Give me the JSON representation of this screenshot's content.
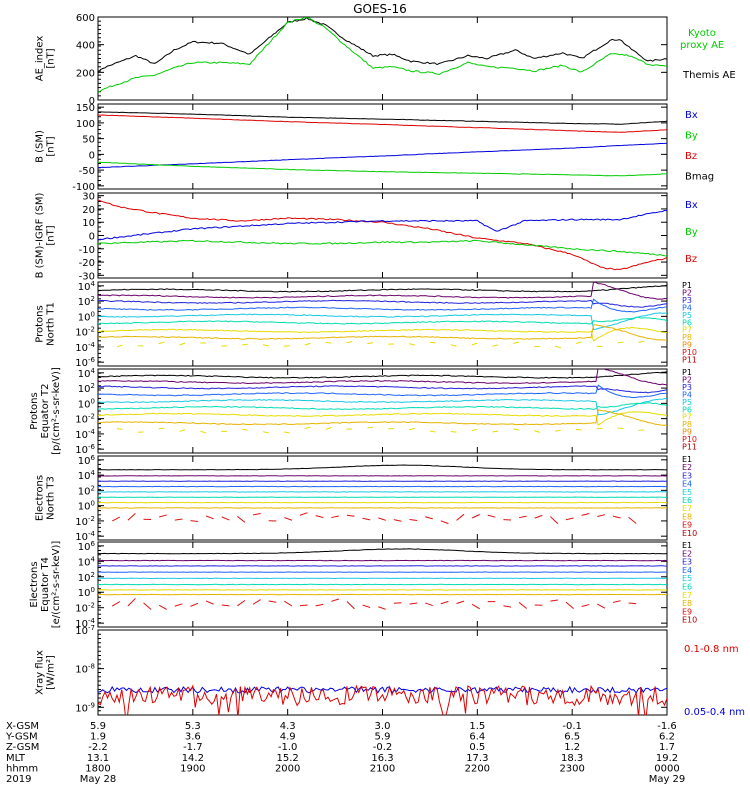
{
  "chart_data": {
    "title": "GOES-16",
    "type": "line",
    "panels": [
      {
        "id": "ae",
        "ylabel": [
          "AE_index",
          "[nT]"
        ],
        "yticks": [
          "600",
          "400",
          "200",
          "0"
        ],
        "ylim": [
          0,
          600
        ],
        "legend": [
          {
            "label": "Kyoto proxy AE",
            "color": "#00cc00",
            "lines": [
              "Kyoto",
              "proxy AE"
            ]
          },
          {
            "label": "Themis AE",
            "color": "#000000",
            "lines": [
              "Themis AE"
            ]
          }
        ],
        "series": [
          {
            "color": "#000000",
            "x_hours": [
              0,
              0.05,
              0.4,
              0.6,
              0.8,
              1,
              1.3,
              1.6,
              2,
              2.2,
              2.4,
              2.6,
              2.9,
              3.1,
              3.3,
              3.6,
              3.9,
              4.1,
              4.4,
              4.6,
              4.9,
              5.1,
              5.4,
              5.5,
              5.6,
              5.8,
              6
            ],
            "values": [
              200,
              230,
              320,
              260,
              360,
              420,
              410,
              330,
              560,
              590,
              540,
              440,
              320,
              330,
              280,
              260,
              320,
              300,
              360,
              300,
              340,
              300,
              430,
              440,
              380,
              280,
              300
            ]
          },
          {
            "color": "#00cc00",
            "x_hours": [
              0,
              0.1,
              0.4,
              0.6,
              0.8,
              1,
              1.3,
              1.6,
              2,
              2.2,
              2.4,
              2.6,
              2.9,
              3.1,
              3.3,
              3.6,
              3.9,
              4.1,
              4.4,
              4.6,
              4.9,
              5.1,
              5.4,
              5.5,
              5.6,
              5.8,
              6
            ],
            "values": [
              60,
              90,
              160,
              180,
              230,
              270,
              270,
              260,
              560,
              600,
              520,
              400,
              230,
              240,
              210,
              190,
              270,
              240,
              230,
              210,
              250,
              200,
              330,
              330,
              320,
              260,
              240
            ]
          }
        ]
      },
      {
        "id": "bsm",
        "ylabel": [
          "B (SM)",
          "[nT]"
        ],
        "yticks": [
          "150",
          "100",
          "50",
          "0",
          "-50",
          "-100"
        ],
        "ylim": [
          -110,
          160
        ],
        "legend": [
          {
            "label": "Bx",
            "color": "#0000dd",
            "lines": [
              "Bx"
            ]
          },
          {
            "label": "By",
            "color": "#00cc00",
            "lines": [
              "By"
            ]
          },
          {
            "label": "Bz",
            "color": "#dd0000",
            "lines": [
              "Bz"
            ]
          },
          {
            "label": "Bmag",
            "color": "#000000",
            "lines": [
              "Bmag"
            ]
          }
        ],
        "series": [
          {
            "color": "#000000",
            "x_hours": [
              0,
              1,
              2,
              3,
              4,
              5,
              5.5,
              6
            ],
            "values": [
              135,
              128,
              118,
              112,
              105,
              98,
              96,
              105
            ]
          },
          {
            "color": "#dd0000",
            "x_hours": [
              0,
              1,
              2,
              3,
              4,
              5,
              5.5,
              6
            ],
            "values": [
              125,
              115,
              104,
              95,
              85,
              75,
              70,
              78
            ]
          },
          {
            "color": "#0000dd",
            "x_hours": [
              0,
              1,
              2,
              3,
              4,
              5,
              5.5,
              6
            ],
            "values": [
              -42,
              -30,
              -17,
              -5,
              8,
              20,
              28,
              35
            ]
          },
          {
            "color": "#00cc00",
            "x_hours": [
              0,
              1,
              2,
              3,
              4,
              5,
              5.5,
              6
            ],
            "values": [
              -25,
              -38,
              -48,
              -55,
              -60,
              -65,
              -68,
              -62
            ]
          }
        ]
      },
      {
        "id": "bres",
        "ylabel": [
          "B (SM)-IGRF (SM)",
          "[nT]"
        ],
        "yticks": [
          "30",
          "20",
          "10",
          "0",
          "-10",
          "-20",
          "-30"
        ],
        "ylim": [
          -32,
          32
        ],
        "legend": [
          {
            "label": "Bx",
            "color": "#0000dd",
            "lines": [
              "Bx"
            ]
          },
          {
            "label": "By",
            "color": "#00cc00",
            "lines": [
              "By"
            ]
          },
          {
            "label": "Bz",
            "color": "#dd0000",
            "lines": [
              "Bz"
            ]
          }
        ],
        "series": [
          {
            "color": "#dd0000",
            "x_hours": [
              0,
              0.2,
              0.6,
              1,
              1.5,
              2,
              2.5,
              3,
              3.5,
              4,
              4.5,
              5,
              5.3,
              5.5,
              5.8,
              6
            ],
            "values": [
              27,
              22,
              17,
              13,
              11,
              13,
              12,
              10,
              5,
              -2,
              -6,
              -14,
              -24,
              -26,
              -20,
              -17
            ]
          },
          {
            "color": "#0000dd",
            "x_hours": [
              0,
              0.5,
              1,
              1.5,
              2,
              2.5,
              3,
              3.5,
              4,
              4.2,
              4.5,
              5,
              5.5,
              6
            ],
            "values": [
              -3,
              1,
              5,
              7,
              9,
              10,
              11,
              11,
              11,
              3,
              11,
              12,
              12,
              19
            ]
          },
          {
            "color": "#00cc00",
            "x_hours": [
              0,
              0.5,
              1,
              1.5,
              2,
              2.5,
              3,
              3.5,
              4,
              4.5,
              5,
              5.5,
              6
            ],
            "values": [
              -6,
              -5,
              -4,
              -5,
              -6,
              -6,
              -5,
              -5,
              -4,
              -7,
              -10,
              -12,
              -15
            ]
          }
        ]
      },
      {
        "id": "pn",
        "ylabel": [
          "Protons",
          "North T1"
        ],
        "yticks": [
          "10^4",
          "10^2",
          "10^0",
          "10^-2",
          "10^-4",
          "10^-6"
        ],
        "ylim": [
          -6.5,
          4.5
        ],
        "legend": [
          {
            "label": "P1",
            "color": "#000000"
          },
          {
            "label": "P2",
            "color": "#6a006a"
          },
          {
            "label": "P3",
            "color": "#2222dd"
          },
          {
            "label": "P4",
            "color": "#1e64ff"
          },
          {
            "label": "P5",
            "color": "#18c8e6"
          },
          {
            "label": "P6",
            "color": "#00dcb4"
          },
          {
            "label": "P7",
            "color": "#e6dc00"
          },
          {
            "label": "P8",
            "color": "#e6b400"
          },
          {
            "label": "P9",
            "color": "#e68c00"
          },
          {
            "label": "P10",
            "color": "#dd1010"
          },
          {
            "label": "P11",
            "color": "#b40000"
          }
        ],
        "base_values": [
          3.4,
          2.6,
          1.9,
          1.0,
          0.1,
          -0.8,
          -1.9,
          -2.8
        ],
        "spike_hour": 5.2
      },
      {
        "id": "pe",
        "ylabel": [
          "Protons",
          "Equator T2",
          "[p/(cm²-s-sr-keV)]"
        ],
        "yticks": [
          "10^4",
          "10^2",
          "10^0",
          "10^-2",
          "10^-4",
          "10^-6"
        ],
        "ylim": [
          -6.5,
          4.5
        ],
        "legend": [
          {
            "label": "P1",
            "color": "#000000"
          },
          {
            "label": "P2",
            "color": "#6a006a"
          },
          {
            "label": "P3",
            "color": "#2222dd"
          },
          {
            "label": "P4",
            "color": "#1e64ff"
          },
          {
            "label": "P5",
            "color": "#18c8e6"
          },
          {
            "label": "P6",
            "color": "#00dcb4"
          },
          {
            "label": "P7",
            "color": "#e6dc00"
          },
          {
            "label": "P8",
            "color": "#e6b400"
          },
          {
            "label": "P9",
            "color": "#e68c00"
          },
          {
            "label": "P10",
            "color": "#dd1010"
          },
          {
            "label": "P11",
            "color": "#b40000"
          }
        ],
        "base_values": [
          3.5,
          2.8,
          2.1,
          1.2,
          0.3,
          -0.6,
          -1.5,
          -2.6
        ],
        "spike_hour": 5.25
      },
      {
        "id": "en",
        "ylabel": [
          "Electrons",
          "North T3"
        ],
        "yticks": [
          "10^6",
          "10^4",
          "10^2",
          "10^0",
          "10^-2",
          "10^-4"
        ],
        "ylim": [
          -4.5,
          6.5
        ],
        "legend": [
          {
            "label": "E1",
            "color": "#000000"
          },
          {
            "label": "E2",
            "color": "#6a006a"
          },
          {
            "label": "E3",
            "color": "#2222dd"
          },
          {
            "label": "E4",
            "color": "#1e64ff"
          },
          {
            "label": "E5",
            "color": "#18c8e6"
          },
          {
            "label": "E6",
            "color": "#00dcb4"
          },
          {
            "label": "E7",
            "color": "#e6dc00"
          },
          {
            "label": "E8",
            "color": "#e6b400"
          },
          {
            "label": "E9",
            "color": "#dd1010"
          },
          {
            "label": "E10",
            "color": "#b40000"
          }
        ],
        "base_values": [
          4.7,
          3.9,
          3.2,
          2.5,
          1.8,
          1.1,
          0.4,
          -0.3,
          -1.6
        ]
      },
      {
        "id": "ee",
        "ylabel": [
          "Electrons",
          "Equator T4",
          "[e/(cm²-s-sr-keV)]"
        ],
        "yticks": [
          "10^6",
          "10^4",
          "10^2",
          "10^0",
          "10^-2",
          "10^-4"
        ],
        "ylim": [
          -4.5,
          6.5
        ],
        "legend": [
          {
            "label": "E1",
            "color": "#000000"
          },
          {
            "label": "E2",
            "color": "#6a006a"
          },
          {
            "label": "E3",
            "color": "#2222dd"
          },
          {
            "label": "E4",
            "color": "#1e64ff"
          },
          {
            "label": "E5",
            "color": "#18c8e6"
          },
          {
            "label": "E6",
            "color": "#00dcb4"
          },
          {
            "label": "E7",
            "color": "#e6dc00"
          },
          {
            "label": "E8",
            "color": "#e6b400"
          },
          {
            "label": "E9",
            "color": "#dd1010"
          },
          {
            "label": "E10",
            "color": "#b40000"
          }
        ],
        "base_values": [
          5.0,
          4.1,
          3.4,
          2.6,
          1.8,
          1.0,
          0.3,
          -0.3,
          -1.5
        ]
      },
      {
        "id": "xray",
        "ylabel": [
          "Xray flux",
          "[W/m²]"
        ],
        "yticks": [
          "10^-7",
          "10^-8",
          "10^-9"
        ],
        "ylim": [
          -9.2,
          -7.0
        ],
        "legend": [
          {
            "label": "0.1-0.8 nm",
            "color": "#dd0000"
          },
          {
            "label": "0.05-0.4 nm",
            "color": "#0000dd"
          }
        ],
        "series": [
          {
            "color": "#0000dd",
            "level": -8.55
          },
          {
            "color": "#dd0000",
            "level": -8.7
          }
        ]
      }
    ],
    "x_axis": {
      "range_hours": [
        0,
        6
      ],
      "tick_hours": [
        0,
        1,
        2,
        3,
        4,
        5,
        6
      ],
      "rows": [
        {
          "label": "X-GSM",
          "values": [
            "5.9",
            "5.3",
            "4.3",
            "3.0",
            "1.5",
            "-0.1",
            "-1.6"
          ]
        },
        {
          "label": "Y-GSM",
          "values": [
            "1.9",
            "3.6",
            "4.9",
            "5.9",
            "6.4",
            "6.5",
            "6.2"
          ]
        },
        {
          "label": "Z-GSM",
          "values": [
            "-2.2",
            "-1.7",
            "-1.0",
            "-0.2",
            "0.5",
            "1.2",
            "1.7"
          ]
        },
        {
          "label": "MLT",
          "values": [
            "13.1",
            "14.2",
            "15.2",
            "16.3",
            "17.3",
            "18.3",
            "19.2"
          ]
        },
        {
          "label": "hhmm",
          "values": [
            "1800",
            "1900",
            "2000",
            "2100",
            "2200",
            "2300",
            "0000"
          ]
        },
        {
          "label": "2019",
          "values": [
            "May 28",
            "",
            "",
            "",
            "",
            "",
            "May 29"
          ]
        }
      ]
    }
  }
}
